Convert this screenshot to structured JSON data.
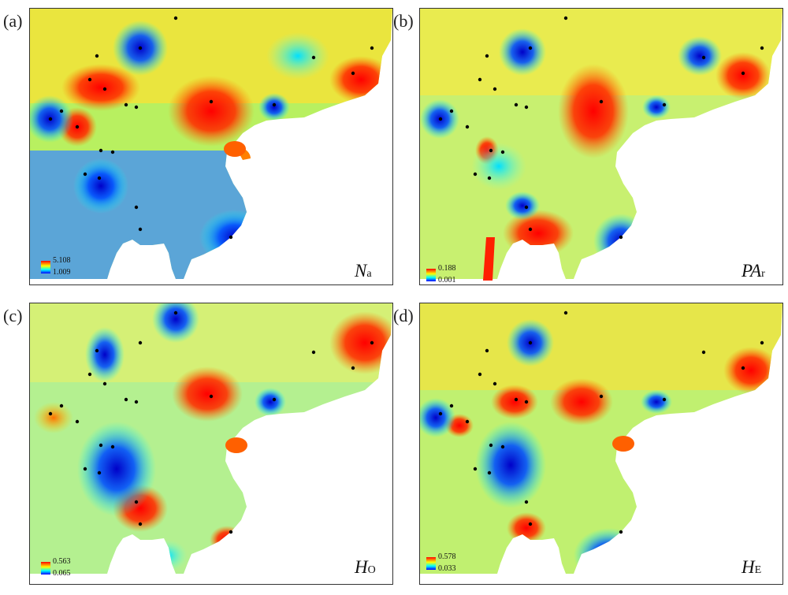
{
  "colors": {
    "high": "#ff0000",
    "mid_high": "#ff8000",
    "mid": "#ffff00",
    "mid_low": "#00ffff",
    "low": "#0000ff",
    "sea": "#ffffff",
    "sample_point": "#000000"
  },
  "panels": [
    {
      "id": "a",
      "tag": "(a)",
      "var_main": "N",
      "var_sub": "a",
      "legend_max": "5.108",
      "legend_min": "1.009",
      "sample_point_count": 22
    },
    {
      "id": "b",
      "tag": "(b)",
      "var_main": "PA",
      "var_sub": "r",
      "legend_max": "0.188",
      "legend_min": "0.001",
      "sample_point_count": 22
    },
    {
      "id": "c",
      "tag": "(c)",
      "var_main": "H",
      "var_sub": "O",
      "legend_max": "0.563",
      "legend_min": "0.065",
      "sample_point_count": 22
    },
    {
      "id": "d",
      "tag": "(d)",
      "var_main": "H",
      "var_sub": "E",
      "legend_max": "0.578",
      "legend_min": "0.033",
      "sample_point_count": 22
    }
  ]
}
